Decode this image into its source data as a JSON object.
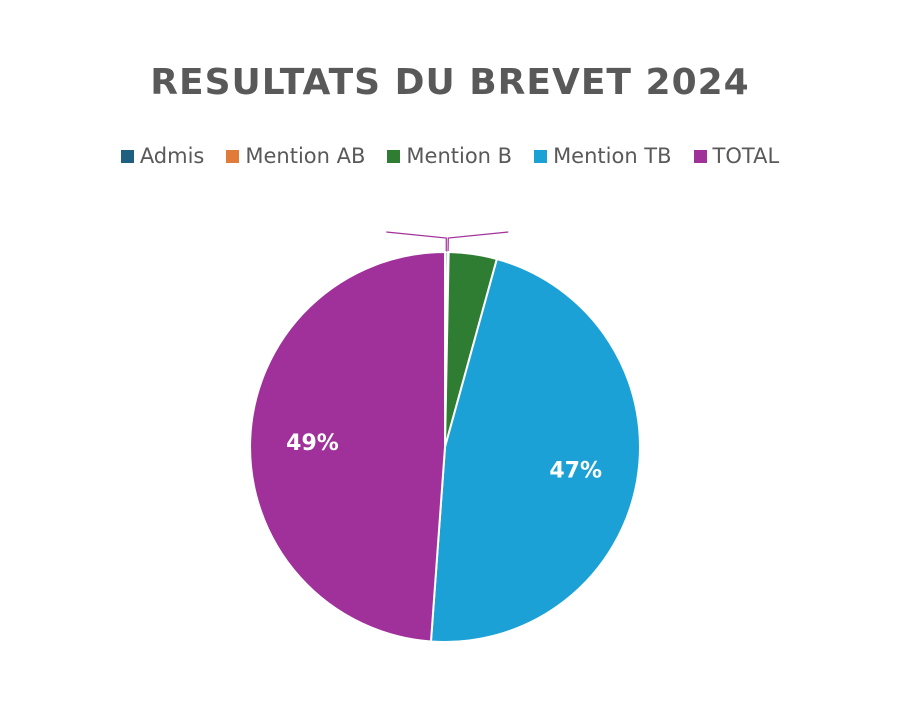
{
  "chart_data": {
    "type": "pie",
    "title": "RESULTATS DU BREVET 2024",
    "legend_position": "top",
    "slices": [
      {
        "name": "Admis",
        "value": 0.2,
        "color": "#1f5f7f",
        "label": ""
      },
      {
        "name": "Mention AB",
        "value": 0.1,
        "color": "#e07b39",
        "label": ""
      },
      {
        "name": "Mention B",
        "value": 4,
        "color": "#2e7d32",
        "label": ""
      },
      {
        "name": "Mention TB",
        "value": 47,
        "color": "#1ba1d6",
        "label": "47%"
      },
      {
        "name": "TOTAL",
        "value": 49,
        "color": "#a0309a",
        "label": "49%"
      }
    ]
  }
}
